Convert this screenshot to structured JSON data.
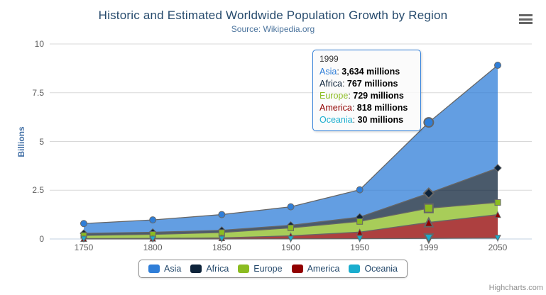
{
  "title": "Historic and Estimated Worldwide Population Growth by Region",
  "subtitle": "Source: Wikipedia.org",
  "credit": "Highcharts.com",
  "y_axis": {
    "title": "Billions"
  },
  "colors": {
    "title": "#274b6d",
    "subtitle": "#4d759e",
    "axis_label": "#606060",
    "y_axis_title": "#4572a7",
    "legend_text": "#274b6d",
    "grid_line": "#d8d8d8",
    "axis_line": "#c0d0e0",
    "series_outline": "#666666",
    "tooltip_border": "#2f7ed8",
    "credit_text": "#909090"
  },
  "tooltip": {
    "header": "1999",
    "rows": [
      {
        "label": "Asia",
        "value": "3,634 millions",
        "color": "#2f7ed8"
      },
      {
        "label": "Africa",
        "value": "767 millions",
        "color": "#0d233a"
      },
      {
        "label": "Europe",
        "value": "729 millions",
        "color": "#8bbc21"
      },
      {
        "label": "America",
        "value": "818 millions",
        "color": "#910000"
      },
      {
        "label": "Oceania",
        "value": "30 millions",
        "color": "#1aadce"
      }
    ]
  },
  "chart_data": {
    "type": "area",
    "stacking": "normal",
    "title": "Historic and Estimated Worldwide Population Growth by Region",
    "subtitle": "Source: Wikipedia.org",
    "xlabel": "",
    "ylabel": "Billions",
    "ylim": [
      0,
      10
    ],
    "y_ticks": [
      0,
      2.5,
      5,
      7.5,
      10
    ],
    "grid": true,
    "legend_position": "bottom",
    "values_unit": "millions",
    "categories": [
      "1750",
      "1800",
      "1850",
      "1900",
      "1950",
      "1999",
      "2050"
    ],
    "hover_index": 5,
    "series": [
      {
        "name": "Asia",
        "color": "#2f7ed8",
        "marker": "circle",
        "values": [
          502,
          635,
          809,
          947,
          1402,
          3634,
          5268
        ]
      },
      {
        "name": "Africa",
        "color": "#0d233a",
        "marker": "diamond",
        "values": [
          106,
          107,
          111,
          133,
          221,
          767,
          1766
        ]
      },
      {
        "name": "Europe",
        "color": "#8bbc21",
        "marker": "square",
        "values": [
          163,
          203,
          276,
          408,
          547,
          729,
          628
        ]
      },
      {
        "name": "America",
        "color": "#910000",
        "marker": "triangle",
        "values": [
          18,
          31,
          54,
          156,
          339,
          818,
          1201
        ]
      },
      {
        "name": "Oceania",
        "color": "#1aadce",
        "marker": "triangle-down",
        "values": [
          2,
          2,
          2,
          6,
          13,
          30,
          46
        ]
      }
    ]
  }
}
